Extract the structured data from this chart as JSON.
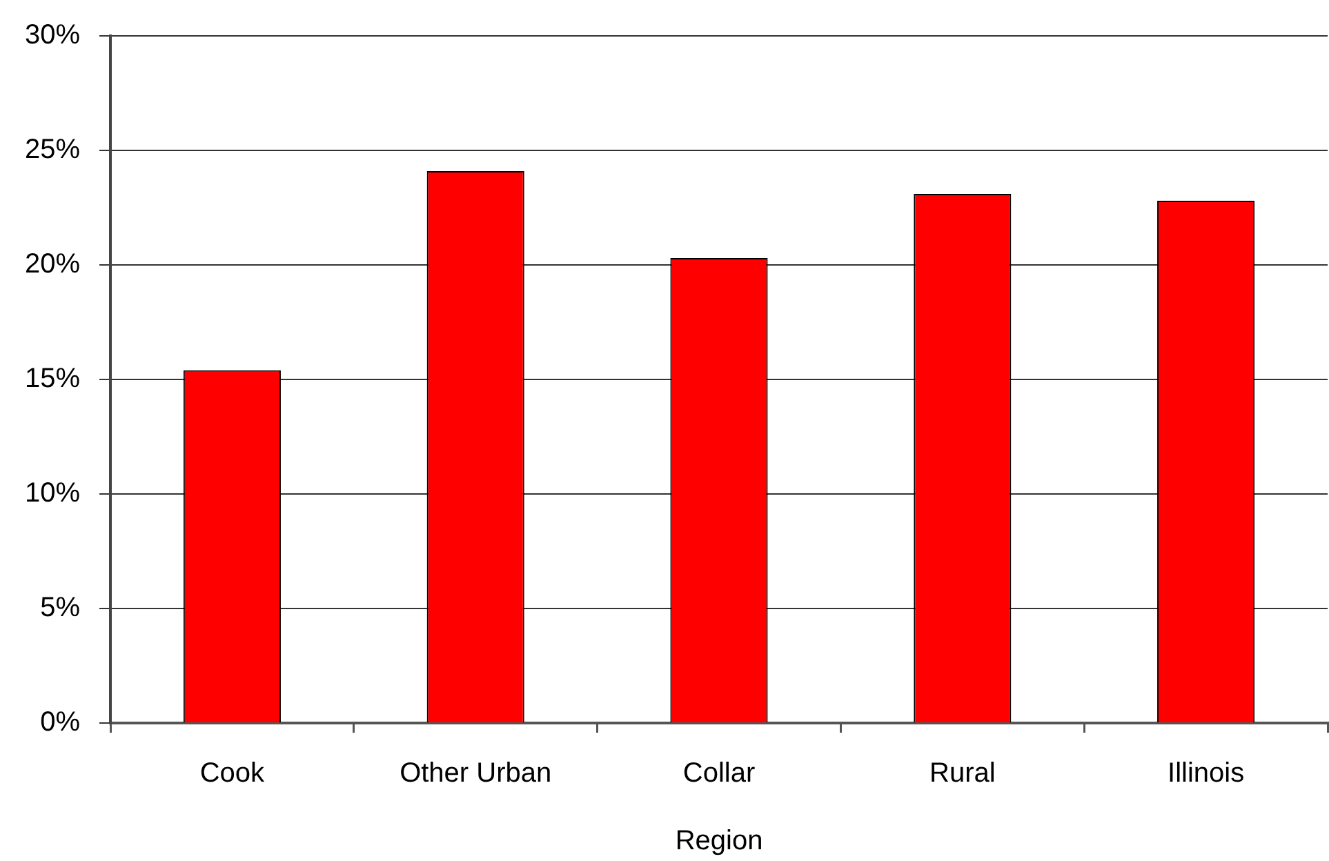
{
  "chart_data": {
    "type": "bar",
    "xlabel": "Region",
    "categories": [
      "Cook",
      "Other Urban",
      "Collar",
      "Rural",
      "Illinois"
    ],
    "values": [
      15.4,
      24.1,
      20.3,
      23.1,
      22.8
    ],
    "color": "#ff0000",
    "ylim": [
      0,
      30
    ],
    "yticks": [
      {
        "value": 0,
        "label": "0%"
      },
      {
        "value": 5,
        "label": "5%"
      },
      {
        "value": 10,
        "label": "10%"
      },
      {
        "value": 15,
        "label": "15%"
      },
      {
        "value": 20,
        "label": "20%"
      },
      {
        "value": 25,
        "label": "25%"
      },
      {
        "value": 30,
        "label": "30%"
      }
    ],
    "grid": "y",
    "legend": false
  }
}
